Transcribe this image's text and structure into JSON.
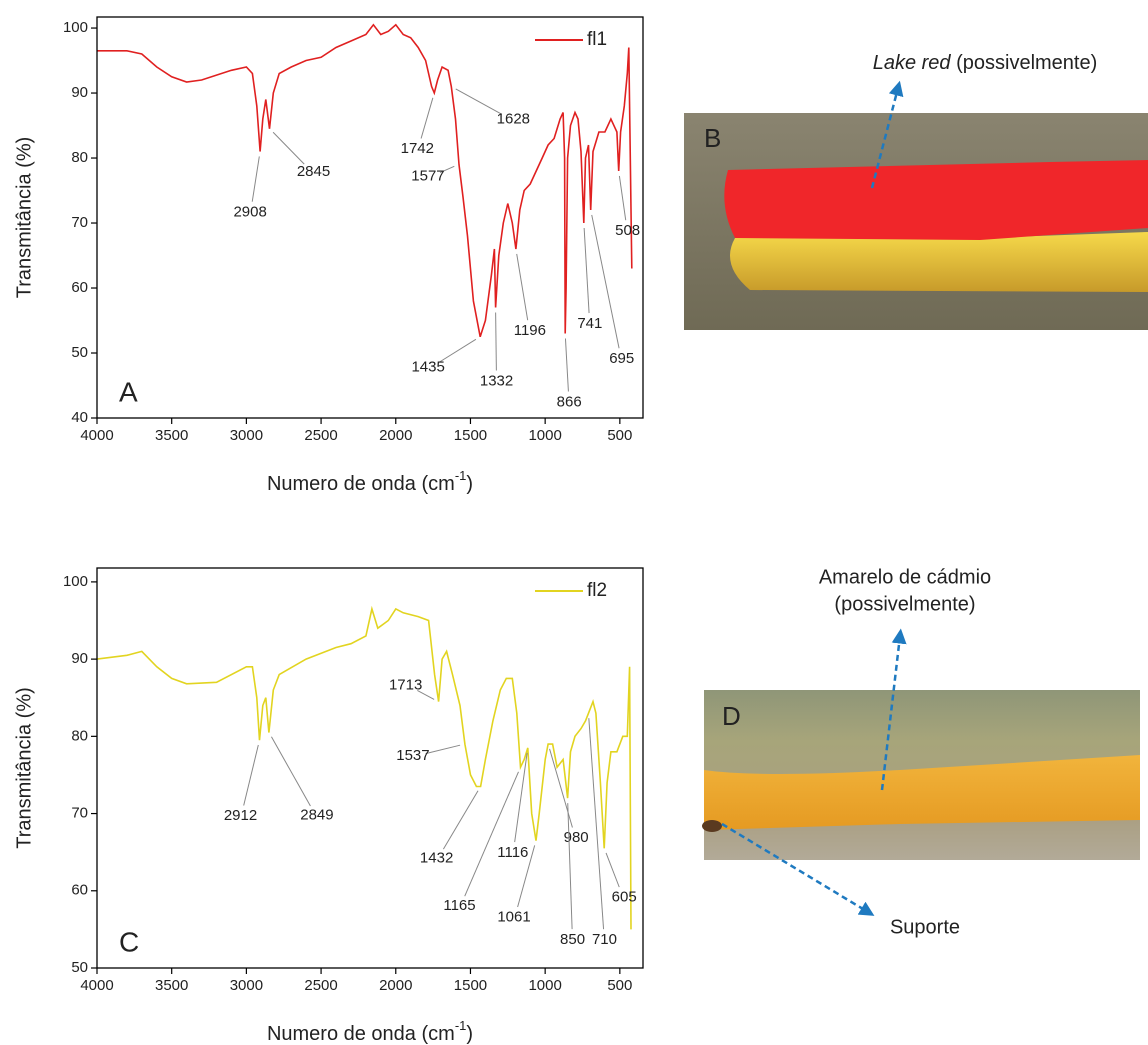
{
  "chart_data": [
    {
      "type": "line",
      "x_label": [
        "Numero de onda (cm",
        "-1",
        ")"
      ],
      "y_label": "Transmitância (%)",
      "panel": "A",
      "legend": "upper right",
      "xlim": [
        4000,
        345
      ],
      "xticks": [
        4000,
        3500,
        3000,
        2500,
        2000,
        1500,
        1000,
        500
      ],
      "ylim": [
        40,
        101.7
      ],
      "yticks": [
        40,
        50,
        60,
        70,
        80,
        90,
        100
      ],
      "series": [
        {
          "name": "fl1",
          "color": "#e02020",
          "x": [
            4000,
            3800,
            3700,
            3600,
            3500,
            3400,
            3300,
            3100,
            3000,
            2960,
            2930,
            2908,
            2890,
            2870,
            2845,
            2820,
            2780,
            2700,
            2600,
            2500,
            2400,
            2300,
            2200,
            2150,
            2100,
            2050,
            2000,
            1950,
            1900,
            1850,
            1800,
            1760,
            1742,
            1720,
            1690,
            1650,
            1628,
            1600,
            1577,
            1550,
            1520,
            1480,
            1435,
            1400,
            1360,
            1340,
            1332,
            1310,
            1280,
            1250,
            1220,
            1196,
            1170,
            1140,
            1100,
            1060,
            1020,
            980,
            940,
            900,
            880,
            870,
            866,
            860,
            850,
            830,
            800,
            780,
            760,
            741,
            730,
            710,
            695,
            680,
            640,
            600,
            560,
            520,
            508,
            495,
            470,
            450,
            440,
            420
          ],
          "values": [
            96.5,
            96.5,
            96,
            94,
            92.5,
            91.7,
            92,
            93.5,
            94,
            93,
            88,
            81,
            86,
            89,
            84.5,
            90,
            93,
            94,
            95,
            95.5,
            97,
            98,
            99,
            100.5,
            99,
            99.5,
            100.5,
            99,
            98.5,
            97,
            95,
            91,
            90,
            92,
            94,
            93.5,
            91,
            86,
            79,
            74,
            68,
            58,
            52.5,
            55,
            62,
            66,
            57,
            65,
            70,
            73,
            70,
            66,
            72,
            75,
            76,
            78,
            80,
            82,
            83,
            86,
            87,
            80,
            53,
            60,
            80,
            85,
            87,
            86,
            81,
            70,
            80,
            82,
            72,
            81,
            84,
            84,
            86,
            84,
            78,
            84,
            88,
            93,
            97,
            63
          ]
        }
      ],
      "peaks": [
        {
          "x": 2908,
          "y": 81
        },
        {
          "x": 2845,
          "y": 84.5
        },
        {
          "x": 1742,
          "y": 90
        },
        {
          "x": 1628,
          "y": 91
        },
        {
          "x": 1577,
          "y": 79
        },
        {
          "x": 1435,
          "y": 52.5
        },
        {
          "x": 1332,
          "y": 57
        },
        {
          "x": 1196,
          "y": 66
        },
        {
          "x": 866,
          "y": 53
        },
        {
          "x": 741,
          "y": 70
        },
        {
          "x": 695,
          "y": 72
        },
        {
          "x": 508,
          "y": 78
        }
      ]
    },
    {
      "type": "line",
      "x_label": [
        "Numero de onda (cm",
        "-1",
        ")"
      ],
      "y_label": "Transmitância (%)",
      "panel": "C",
      "legend": "upper right",
      "xlim": [
        4000,
        345
      ],
      "xticks": [
        4000,
        3500,
        3000,
        2500,
        2000,
        1500,
        1000,
        500
      ],
      "ylim": [
        50,
        101.8
      ],
      "yticks": [
        50,
        60,
        70,
        80,
        90,
        100
      ],
      "series": [
        {
          "name": "fl2",
          "color": "#e2d420",
          "x": [
            4000,
            3800,
            3700,
            3600,
            3500,
            3400,
            3200,
            3000,
            2960,
            2930,
            2912,
            2890,
            2870,
            2849,
            2820,
            2780,
            2600,
            2400,
            2300,
            2200,
            2160,
            2120,
            2050,
            2000,
            1950,
            1850,
            1780,
            1740,
            1713,
            1690,
            1660,
            1620,
            1570,
            1537,
            1500,
            1460,
            1432,
            1400,
            1350,
            1300,
            1260,
            1220,
            1190,
            1165,
            1140,
            1116,
            1090,
            1061,
            1040,
            1000,
            980,
            950,
            920,
            880,
            850,
            830,
            800,
            760,
            730,
            710,
            680,
            660,
            630,
            605,
            585,
            560,
            520,
            480,
            450,
            435,
            425
          ],
          "values": [
            90,
            90.5,
            91,
            89,
            87.5,
            86.8,
            87,
            89,
            89,
            85,
            79.5,
            84,
            85,
            80.5,
            86,
            88,
            90,
            91.5,
            92,
            93,
            96.5,
            94,
            95,
            96.5,
            96,
            95.5,
            95,
            88,
            84.5,
            90,
            91,
            88,
            84,
            79,
            75,
            73.5,
            73.5,
            77,
            82,
            86,
            87.5,
            87.5,
            83,
            76,
            77,
            78.5,
            70,
            66.5,
            70,
            77,
            79,
            79,
            76,
            77,
            72,
            78,
            80,
            81,
            82,
            83,
            84.5,
            83,
            74,
            65.5,
            74,
            78,
            78,
            80,
            80,
            89,
            55
          ]
        }
      ],
      "peaks": [
        {
          "x": 2912,
          "y": 79.5
        },
        {
          "x": 2849,
          "y": 80.5
        },
        {
          "x": 1713,
          "y": 84.5
        },
        {
          "x": 1537,
          "y": 79
        },
        {
          "x": 1432,
          "y": 73.5
        },
        {
          "x": 1165,
          "y": 76
        },
        {
          "x": 1116,
          "y": 78.5
        },
        {
          "x": 1061,
          "y": 66.5
        },
        {
          "x": 980,
          "y": 79
        },
        {
          "x": 850,
          "y": 72
        },
        {
          "x": 710,
          "y": 83
        },
        {
          "x": 605,
          "y": 65.5
        }
      ]
    }
  ],
  "photos": [
    {
      "label": "B",
      "caption": [
        "Lake red",
        "(possivelmente)"
      ]
    },
    {
      "label": "D",
      "caption": [
        "Amarelo de cádmio",
        "(possivelmente)"
      ],
      "arrow_label": "Suporte"
    }
  ]
}
